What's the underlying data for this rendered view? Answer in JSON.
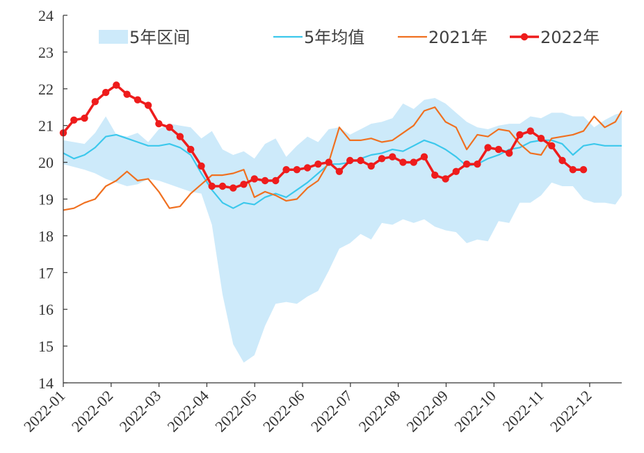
{
  "chart_data": {
    "type": "line",
    "title": "",
    "xlabel": "",
    "ylabel": "",
    "ylim": [
      14,
      24
    ],
    "y_ticks": [
      "14",
      "15",
      "16",
      "17",
      "18",
      "19",
      "20",
      "21",
      "22",
      "23",
      "24"
    ],
    "x_ticks": [
      "2022-01",
      "2022-02",
      "2022-03",
      "2022-04",
      "2022-05",
      "2022-06",
      "2022-07",
      "2022-08",
      "2022-09",
      "2022-10",
      "2022-11",
      "2022-12"
    ],
    "xlim": [
      0,
      52.6
    ],
    "x_unit": "week",
    "grid": false,
    "legend_position": "top",
    "series": [
      {
        "name": "5年区间",
        "kind": "band",
        "color": "#cdeafa",
        "x": [
          0,
          2,
          3,
          4,
          5,
          6,
          7,
          8,
          9,
          10,
          11,
          12,
          13,
          14,
          15,
          16,
          17,
          18,
          19,
          20,
          21,
          22,
          23,
          24,
          25,
          26,
          27,
          28,
          29,
          30,
          31,
          32,
          33,
          34,
          35,
          36,
          37,
          38,
          39,
          40,
          41,
          42,
          43,
          44,
          45,
          46,
          47,
          48,
          49,
          50,
          51,
          52,
          52.6
        ],
        "upper": [
          20.6,
          20.5,
          20.8,
          21.25,
          20.75,
          20.7,
          20.8,
          20.55,
          20.9,
          21.05,
          21.0,
          20.95,
          20.65,
          20.85,
          20.35,
          20.2,
          20.3,
          20.1,
          20.5,
          20.65,
          20.15,
          20.45,
          20.7,
          20.55,
          20.9,
          20.95,
          20.75,
          20.9,
          21.05,
          21.1,
          21.2,
          21.6,
          21.45,
          21.7,
          21.75,
          21.6,
          21.35,
          21.1,
          20.95,
          20.9,
          21.0,
          21.05,
          21.05,
          21.25,
          21.2,
          21.35,
          21.35,
          21.25,
          21.25,
          20.95,
          21.15,
          21.3,
          21.35
        ],
        "lower": [
          19.95,
          19.8,
          19.7,
          19.55,
          19.45,
          19.35,
          19.4,
          19.55,
          19.5,
          19.4,
          19.3,
          19.2,
          19.15,
          18.3,
          16.4,
          15.05,
          14.55,
          14.75,
          15.55,
          16.15,
          16.2,
          16.15,
          16.35,
          16.5,
          17.05,
          17.65,
          17.8,
          18.05,
          17.9,
          18.35,
          18.3,
          18.45,
          18.35,
          18.45,
          18.25,
          18.15,
          18.1,
          17.8,
          17.9,
          17.85,
          18.4,
          18.35,
          18.9,
          18.9,
          19.1,
          19.45,
          19.35,
          19.35,
          19.0,
          18.9,
          18.9,
          18.85,
          19.1
        ]
      },
      {
        "name": "5年均值",
        "color": "#3cc8ec",
        "x": [
          0,
          1,
          2,
          3,
          4,
          5,
          6,
          7,
          8,
          9,
          10,
          11,
          12,
          13,
          14,
          15,
          16,
          17,
          18,
          19,
          20,
          21,
          22,
          23,
          24,
          25,
          26,
          27,
          28,
          29,
          30,
          31,
          32,
          33,
          34,
          35,
          36,
          37,
          38,
          39,
          40,
          41,
          42,
          43,
          44,
          45,
          46,
          47,
          48,
          49,
          50,
          51,
          52,
          52.6
        ],
        "y": [
          20.25,
          20.1,
          20.2,
          20.4,
          20.7,
          20.75,
          20.65,
          20.55,
          20.45,
          20.45,
          20.5,
          20.4,
          20.2,
          19.7,
          19.25,
          18.9,
          18.75,
          18.9,
          18.85,
          19.05,
          19.15,
          19.05,
          19.25,
          19.45,
          19.7,
          19.95,
          19.95,
          20.0,
          20.1,
          20.2,
          20.25,
          20.35,
          20.3,
          20.45,
          20.6,
          20.5,
          20.35,
          20.15,
          19.9,
          19.95,
          20.1,
          20.2,
          20.35,
          20.4,
          20.55,
          20.6,
          20.6,
          20.5,
          20.2,
          20.45,
          20.5,
          20.45,
          20.45,
          20.45
        ]
      },
      {
        "name": "2021年",
        "color": "#f07020",
        "x": [
          0,
          1,
          2,
          3,
          4,
          5,
          6,
          7,
          8,
          9,
          10,
          11,
          12,
          13,
          14,
          15,
          16,
          17,
          18,
          19,
          20,
          21,
          22,
          23,
          24,
          25,
          26,
          27,
          28,
          29,
          30,
          31,
          32,
          33,
          34,
          35,
          36,
          37,
          38,
          39,
          40,
          41,
          42,
          43,
          44,
          45,
          46,
          47,
          48,
          49,
          50,
          51,
          52,
          52.6
        ],
        "y": [
          18.7,
          18.75,
          18.9,
          19.0,
          19.35,
          19.5,
          19.75,
          19.5,
          19.55,
          19.2,
          18.75,
          18.8,
          19.15,
          19.4,
          19.65,
          19.65,
          19.7,
          19.8,
          19.05,
          19.2,
          19.1,
          18.95,
          19.0,
          19.3,
          19.5,
          20.0,
          20.95,
          20.6,
          20.6,
          20.65,
          20.55,
          20.6,
          20.8,
          21.0,
          21.4,
          21.5,
          21.1,
          20.95,
          20.35,
          20.75,
          20.7,
          20.9,
          20.85,
          20.5,
          20.25,
          20.2,
          20.65,
          20.7,
          20.75,
          20.85,
          21.25,
          20.95,
          21.1,
          21.4
        ]
      },
      {
        "name": "2022年",
        "color": "#ee1c1c",
        "markers": true,
        "x": [
          0,
          1,
          2,
          3,
          4,
          5,
          6,
          7,
          8,
          9,
          10,
          11,
          12,
          13,
          14,
          15,
          16,
          17,
          18,
          19,
          20,
          21,
          22,
          23,
          24,
          25,
          26,
          27,
          28,
          29,
          30,
          31,
          32,
          33,
          34,
          35,
          36,
          37,
          38,
          39,
          40,
          41,
          42,
          43,
          44,
          45,
          46,
          47,
          48,
          49
        ],
        "y": [
          20.8,
          21.15,
          21.2,
          21.65,
          21.9,
          22.1,
          21.85,
          21.7,
          21.55,
          21.05,
          20.95,
          20.7,
          20.35,
          19.9,
          19.35,
          19.35,
          19.3,
          19.4,
          19.55,
          19.5,
          19.5,
          19.8,
          19.8,
          19.85,
          19.95,
          20.0,
          19.75,
          20.05,
          20.05,
          19.9,
          20.1,
          20.15,
          20.0,
          20.0,
          20.15,
          19.65,
          19.55,
          19.75,
          19.95,
          19.95,
          20.4,
          20.35,
          20.25,
          20.75,
          20.85,
          20.65,
          20.45,
          20.05,
          19.8,
          19.8
        ]
      }
    ]
  }
}
